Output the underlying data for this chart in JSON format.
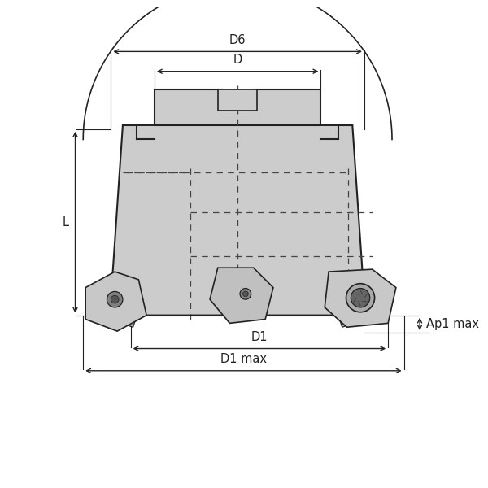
{
  "bg_color": "#ffffff",
  "part_fill": "#cccccc",
  "part_fill_dark": "#b0b0b0",
  "insert_fill": "#c0c0c0",
  "insert_fill_dark": "#a8a8a8",
  "part_edge": "#222222",
  "dim_color": "#222222",
  "dashed_color": "#444444",
  "labels": {
    "D6": "D6",
    "D": "D",
    "L": "L",
    "D1": "D1",
    "D1max": "D1 max",
    "Ap1max": "Ap1 max"
  },
  "font_size": 10.5
}
